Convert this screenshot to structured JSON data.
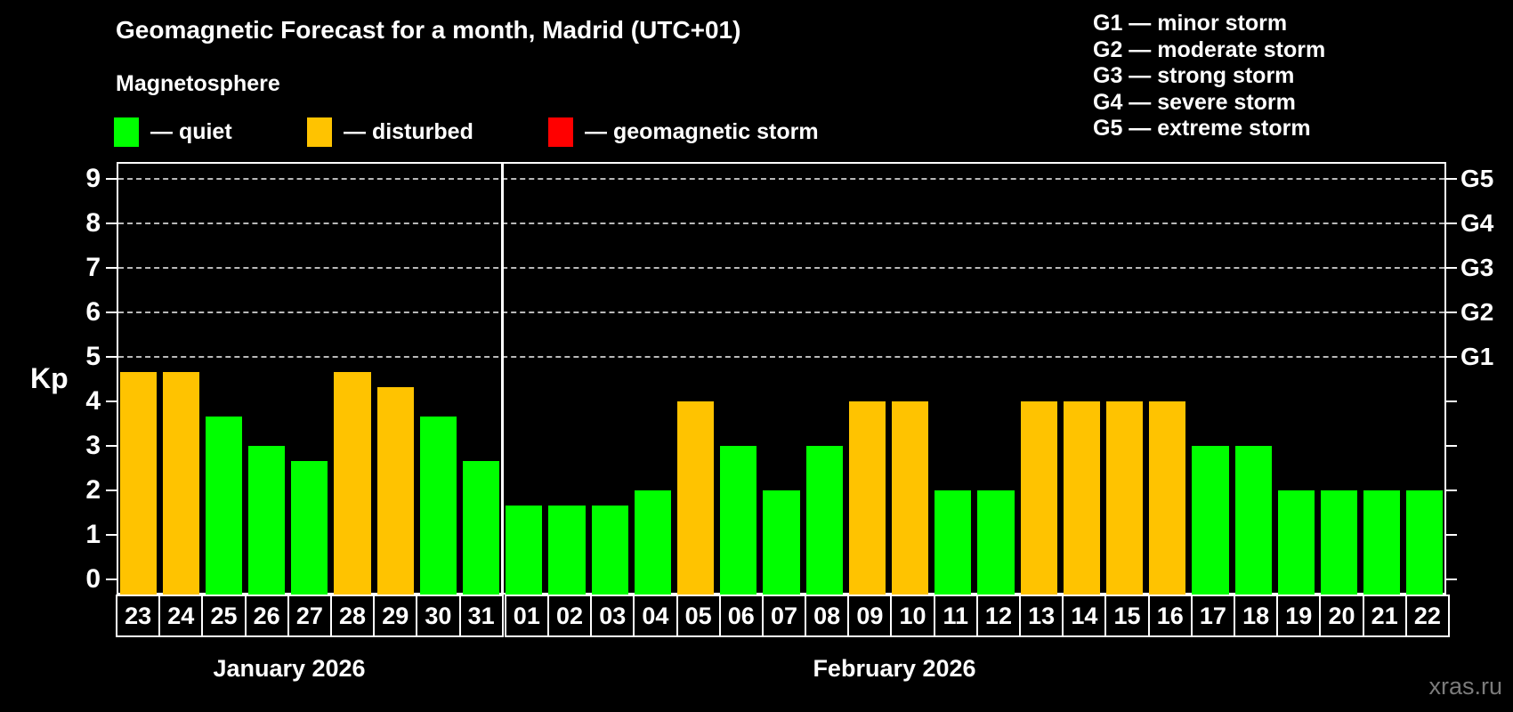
{
  "header": {
    "title": "Geomagnetic Forecast for a month, Madrid (UTC+01)",
    "subtitle": "Magnetosphere"
  },
  "legend": {
    "items": [
      {
        "name": "quiet",
        "label": "— quiet",
        "color": "#00FF00"
      },
      {
        "name": "disturbed",
        "label": "— disturbed",
        "color": "#FFC300"
      },
      {
        "name": "geomagnetic-storm",
        "label": "— geomagnetic storm",
        "color": "#FF0000"
      }
    ]
  },
  "g_legend": {
    "items": [
      "G1 — minor storm",
      "G2 — moderate storm",
      "G3 — strong storm",
      "G4 — severe storm",
      "G5 — extreme storm"
    ]
  },
  "watermark": "xras.ru",
  "chart_data": {
    "type": "bar",
    "title": "Geomagnetic Forecast for a month, Madrid (UTC+01)",
    "subtitle": "Magnetosphere",
    "ylabel": "Kp",
    "ylim": [
      0,
      9.4
    ],
    "yticks": [
      0,
      1,
      2,
      3,
      4,
      5,
      6,
      7,
      8,
      9
    ],
    "gridlines_at": [
      5,
      6,
      7,
      8,
      9
    ],
    "grid": "dashed horizontal at G-storm levels only",
    "legend_position": "top-left statuses, top-right G-scale",
    "right_axis": [
      {
        "level": 5,
        "label": "G1"
      },
      {
        "level": 6,
        "label": "G2"
      },
      {
        "level": 7,
        "label": "G3"
      },
      {
        "level": 8,
        "label": "G4"
      },
      {
        "level": 9,
        "label": "G5"
      }
    ],
    "status_colors": {
      "quiet": "#00FF00",
      "disturbed": "#FFC300",
      "storm": "#FF0000"
    },
    "months": [
      {
        "label": "January 2026",
        "days": [
          {
            "day": "23",
            "kp": 4.67,
            "status": "disturbed"
          },
          {
            "day": "24",
            "kp": 4.67,
            "status": "disturbed"
          },
          {
            "day": "25",
            "kp": 3.67,
            "status": "quiet"
          },
          {
            "day": "26",
            "kp": 3.0,
            "status": "quiet"
          },
          {
            "day": "27",
            "kp": 2.67,
            "status": "quiet"
          },
          {
            "day": "28",
            "kp": 4.67,
            "status": "disturbed"
          },
          {
            "day": "29",
            "kp": 4.33,
            "status": "disturbed"
          },
          {
            "day": "30",
            "kp": 3.67,
            "status": "quiet"
          },
          {
            "day": "31",
            "kp": 2.67,
            "status": "quiet"
          }
        ]
      },
      {
        "label": "February 2026",
        "days": [
          {
            "day": "01",
            "kp": 1.67,
            "status": "quiet"
          },
          {
            "day": "02",
            "kp": 1.67,
            "status": "quiet"
          },
          {
            "day": "03",
            "kp": 1.67,
            "status": "quiet"
          },
          {
            "day": "04",
            "kp": 2.0,
            "status": "quiet"
          },
          {
            "day": "05",
            "kp": 4.0,
            "status": "disturbed"
          },
          {
            "day": "06",
            "kp": 3.0,
            "status": "quiet"
          },
          {
            "day": "07",
            "kp": 2.0,
            "status": "quiet"
          },
          {
            "day": "08",
            "kp": 3.0,
            "status": "quiet"
          },
          {
            "day": "09",
            "kp": 4.0,
            "status": "disturbed"
          },
          {
            "day": "10",
            "kp": 4.0,
            "status": "disturbed"
          },
          {
            "day": "11",
            "kp": 2.0,
            "status": "quiet"
          },
          {
            "day": "12",
            "kp": 2.0,
            "status": "quiet"
          },
          {
            "day": "13",
            "kp": 4.0,
            "status": "disturbed"
          },
          {
            "day": "14",
            "kp": 4.0,
            "status": "disturbed"
          },
          {
            "day": "15",
            "kp": 4.0,
            "status": "disturbed"
          },
          {
            "day": "16",
            "kp": 4.0,
            "status": "disturbed"
          },
          {
            "day": "17",
            "kp": 3.0,
            "status": "quiet"
          },
          {
            "day": "18",
            "kp": 3.0,
            "status": "quiet"
          },
          {
            "day": "19",
            "kp": 2.0,
            "status": "quiet"
          },
          {
            "day": "20",
            "kp": 2.0,
            "status": "quiet"
          },
          {
            "day": "21",
            "kp": 2.0,
            "status": "quiet"
          },
          {
            "day": "22",
            "kp": 2.0,
            "status": "quiet"
          }
        ]
      }
    ]
  }
}
